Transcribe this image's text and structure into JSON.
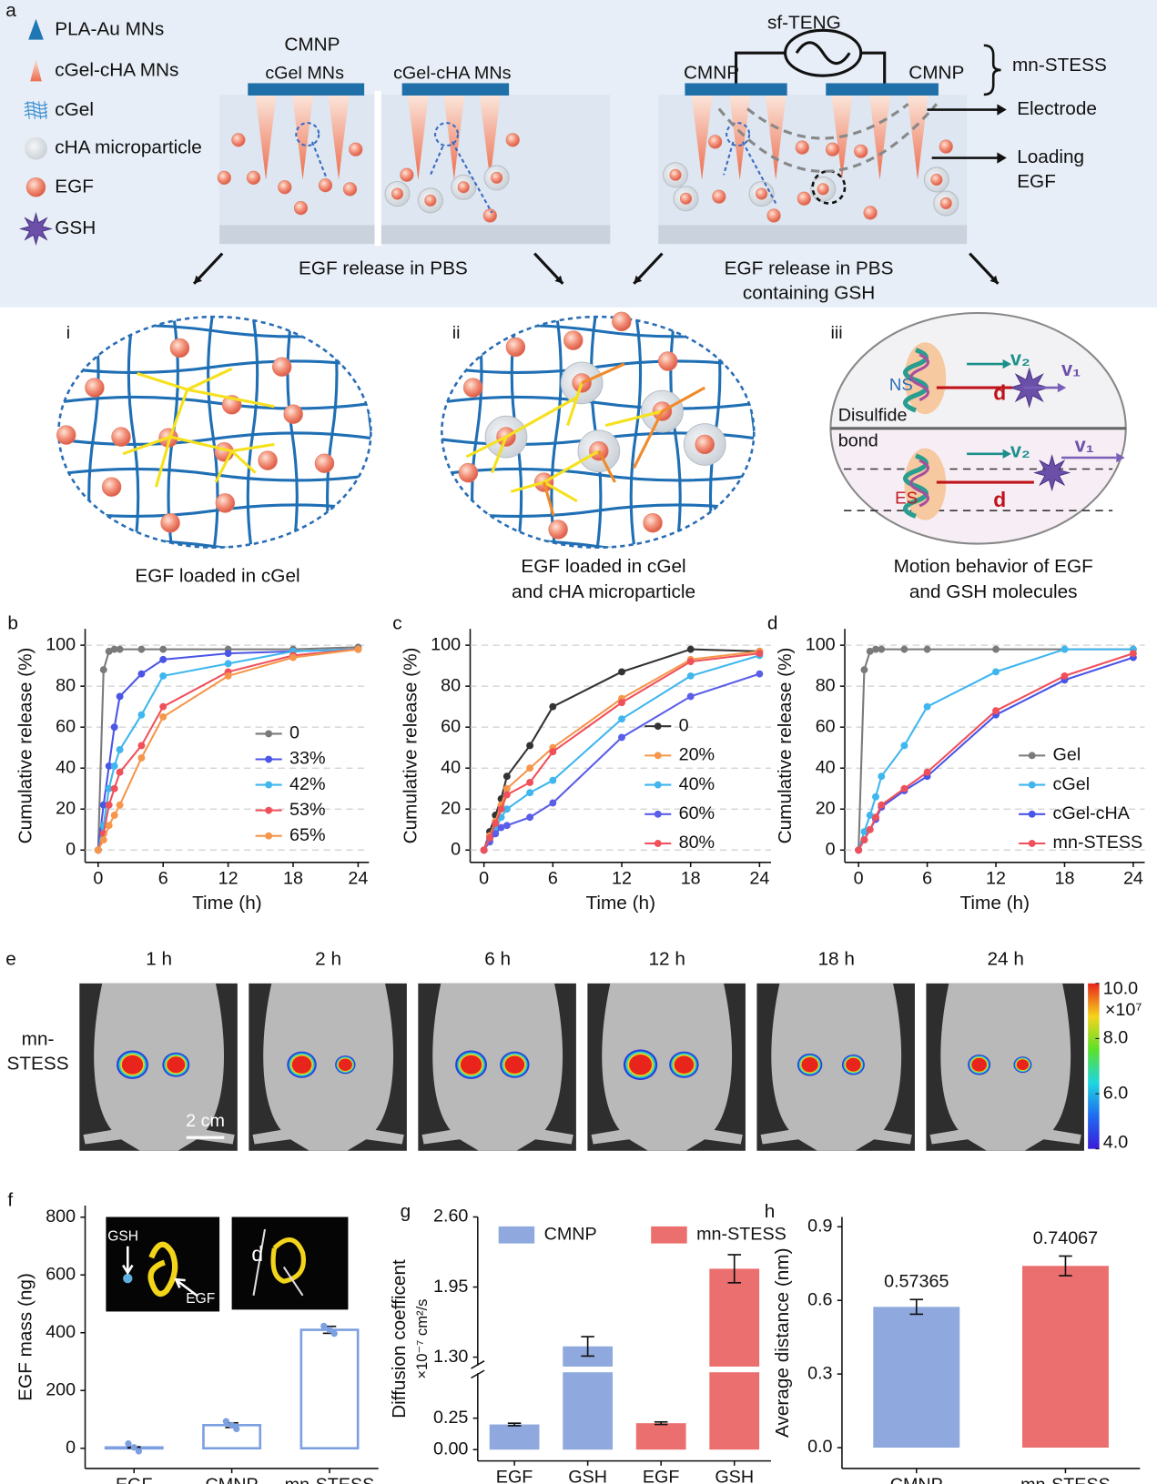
{
  "figure": {
    "panel": "a",
    "legend": [
      "PLA-Au MNs",
      "cGel-cHA MNs",
      "cGel",
      "cHA microparticle",
      "EGF",
      "GSH"
    ],
    "left_patch": {
      "title": "CMNP",
      "labels": [
        "cGel MNs",
        "cGel-cHA MNs"
      ],
      "caption": [
        "EGF release in PBS"
      ]
    },
    "right_patch": {
      "device": "sf-TENG",
      "labels": [
        "CMNP",
        "CMNP"
      ],
      "system": "mn-STESS",
      "electrode": "Electrode",
      "loading": [
        "Loading",
        "EGF"
      ],
      "caption": [
        "EGF release in PBS",
        "containing GSH"
      ]
    },
    "zooms": [
      {
        "label": "i",
        "caption": [
          "EGF loaded in cGel"
        ]
      },
      {
        "label": "ii",
        "caption": [
          "EGF loaded in cGel",
          "and cHA microparticle"
        ]
      },
      {
        "label": "iii",
        "caption": [
          "Motion behavior of EGF",
          "and GSH molecules"
        ],
        "top": {
          "ns": "NS",
          "v2": "v₂",
          "v1": "v₁",
          "d": "d",
          "bond": [
            "Disulfide",
            "bond"
          ]
        },
        "bottom": {
          "es": "ES",
          "v2": "v₂",
          "v1": "v₁",
          "d": "d"
        }
      }
    ]
  },
  "imaging": {
    "panel": "e",
    "times": [
      "1 h",
      "2 h",
      "6 h",
      "12 h",
      "18 h",
      "24 h"
    ],
    "row_label": [
      "mn-",
      "STESS"
    ],
    "scale_bar": "2 cm",
    "colorbar": {
      "range": [
        4,
        10
      ],
      "unit": "×10⁷",
      "ticks": [
        {
          "value": 10,
          "label": "10.0"
        },
        {
          "value": 8,
          "label": "8.0"
        },
        {
          "value": 6,
          "label": "6.0"
        },
        {
          "value": 4,
          "label": "4.0"
        }
      ]
    }
  },
  "chart_data": [
    {
      "type": "line",
      "panel": "b",
      "xlabel": "Time (h)",
      "ylabel": "Cumulative release (%)",
      "x": [
        0,
        0.5,
        1,
        1.5,
        2,
        4,
        6,
        12,
        18,
        24
      ],
      "xlim": [
        -1.2,
        25
      ],
      "xticks": [
        0,
        6,
        12,
        18,
        24
      ],
      "ylim": [
        -6,
        108
      ],
      "yticks": [
        0,
        20,
        40,
        60,
        80,
        100
      ],
      "grid": true,
      "legend": "right",
      "series": [
        {
          "name": "0",
          "color": "#7a7a7a",
          "values": [
            0,
            88,
            97,
            98,
            98,
            98,
            98,
            98,
            98,
            99
          ]
        },
        {
          "name": "33%",
          "color": "#4b55e6",
          "values": [
            0,
            22,
            41,
            60,
            75,
            86,
            93,
            96,
            97,
            98
          ]
        },
        {
          "name": "42%",
          "color": "#3fb6ee",
          "values": [
            0,
            12,
            30,
            41,
            49,
            66,
            85,
            91,
            97,
            98
          ]
        },
        {
          "name": "53%",
          "color": "#f0505a",
          "values": [
            0,
            8,
            22,
            30,
            38,
            51,
            70,
            87,
            95,
            98
          ]
        },
        {
          "name": "65%",
          "color": "#f5964a",
          "values": [
            0,
            5,
            12,
            17,
            22,
            45,
            65,
            85,
            94,
            98
          ]
        }
      ]
    },
    {
      "type": "line",
      "panel": "c",
      "xlabel": "Time (h)",
      "ylabel": "Cumulative release (%)",
      "x": [
        0,
        0.5,
        1,
        1.5,
        2,
        4,
        6,
        12,
        18,
        24
      ],
      "xlim": [
        -1.2,
        25
      ],
      "xticks": [
        0,
        6,
        12,
        18,
        24
      ],
      "ylim": [
        -6,
        108
      ],
      "yticks": [
        0,
        20,
        40,
        60,
        80,
        100
      ],
      "grid": true,
      "legend": "lower right",
      "series": [
        {
          "name": "0",
          "color": "#333333",
          "values": [
            0,
            9,
            17,
            25,
            36,
            51,
            70,
            87,
            98,
            97
          ]
        },
        {
          "name": "20%",
          "color": "#f5964a",
          "values": [
            0,
            7,
            14,
            22,
            30,
            40,
            50,
            74,
            93,
            97
          ]
        },
        {
          "name": "40%",
          "color": "#3fb6ee",
          "values": [
            0,
            5,
            10,
            16,
            20,
            28,
            34,
            64,
            85,
            95
          ]
        },
        {
          "name": "60%",
          "color": "#5a5ee8",
          "values": [
            0,
            4,
            8,
            11,
            12,
            16,
            23,
            55,
            75,
            86
          ]
        },
        {
          "name": "80%",
          "color": "#f0505a",
          "values": [
            0,
            6,
            13,
            20,
            27,
            33,
            48,
            72,
            92,
            96
          ]
        }
      ]
    },
    {
      "type": "line",
      "panel": "d",
      "xlabel": "Time (h)",
      "ylabel": "Cumulative release (%)",
      "x": [
        0,
        0.5,
        1,
        1.5,
        2,
        4,
        6,
        12,
        18,
        24
      ],
      "xlim": [
        -1.2,
        25
      ],
      "xticks": [
        0,
        6,
        12,
        18,
        24
      ],
      "ylim": [
        -6,
        108
      ],
      "yticks": [
        0,
        20,
        40,
        60,
        80,
        100
      ],
      "grid": true,
      "legend": "lower right",
      "series": [
        {
          "name": "Gel",
          "color": "#7a7a7a",
          "values": [
            0,
            88,
            97,
            98,
            98,
            98,
            98,
            98,
            98,
            98
          ]
        },
        {
          "name": "cGel",
          "color": "#3fb6ee",
          "values": [
            0,
            9,
            17,
            26,
            36,
            51,
            70,
            87,
            98,
            98
          ]
        },
        {
          "name": "cGel-cHA",
          "color": "#4a55e8",
          "values": [
            0,
            5,
            10,
            15,
            21,
            29,
            36,
            66,
            83,
            94
          ]
        },
        {
          "name": "mn-STESS",
          "color": "#f0505a",
          "values": [
            0,
            5,
            10,
            16,
            22,
            30,
            38,
            68,
            85,
            96
          ]
        }
      ]
    },
    {
      "type": "bar",
      "panel": "f",
      "style": "outline",
      "ylabel": "EGF mass (ng)",
      "categories": [
        "EGF",
        "CMNP",
        "mn-STESS"
      ],
      "values": [
        3,
        80,
        410
      ],
      "errors": [
        2,
        8,
        12
      ],
      "color": "#7b9fe0",
      "ylim": [
        -70,
        840
      ],
      "yticks": [
        0,
        200,
        400,
        600,
        800
      ],
      "grid": false,
      "insets": [
        "GSH",
        "EGF",
        "d"
      ]
    },
    {
      "type": "broken_bar",
      "panel": "g",
      "ylabel": [
        "Diffusion coefficent",
        "×10⁻⁷ cm²/s"
      ],
      "ylim": [
        -0.09,
        2.6
      ],
      "y_break": [
        0.6,
        1.23
      ],
      "yticks": [
        {
          "value": 0,
          "label": "0.00"
        },
        {
          "value": 0.25,
          "label": "0.25"
        },
        {
          "value": 1.3,
          "label": "1.30"
        },
        {
          "value": 1.95,
          "label": "1.95"
        },
        {
          "value": 2.6,
          "label": "2.60"
        }
      ],
      "grid": false,
      "legend": "top",
      "series": [
        {
          "name": "CMNP",
          "color": "#8fa8de",
          "categories": [
            "EGF",
            "GSH"
          ],
          "values": [
            0.2,
            1.4
          ],
          "errors": [
            0.01,
            0.09
          ]
        },
        {
          "name": "mn-STESS",
          "color": "#ec6f6f",
          "categories": [
            "EGF",
            "GSH"
          ],
          "values": [
            0.21,
            2.12
          ],
          "errors": [
            0.01,
            0.13
          ]
        }
      ]
    },
    {
      "type": "bar",
      "panel": "h",
      "style": "filled",
      "ylabel": "Average distance (nm)",
      "categories": [
        "CMNP",
        "mn-STESS"
      ],
      "values": [
        0.57365,
        0.74067
      ],
      "errors": [
        0.03,
        0.04
      ],
      "colors": [
        "#8fa8de",
        "#ec6f6f"
      ],
      "ylim": [
        -0.085,
        0.94
      ],
      "yticks": [
        {
          "value": 0,
          "label": "0.0"
        },
        {
          "value": 0.3,
          "label": "0.3"
        },
        {
          "value": 0.6,
          "label": "0.6"
        },
        {
          "value": 0.9,
          "label": "0.9"
        }
      ],
      "grid": false
    }
  ]
}
